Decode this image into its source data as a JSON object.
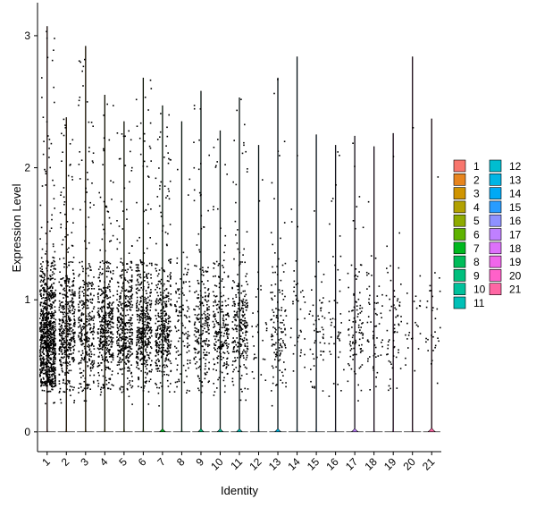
{
  "chart_data": {
    "type": "violin",
    "xlabel": "Identity",
    "ylabel": "Expression Level",
    "ylim": [
      -0.15,
      3.25
    ],
    "yticks": [
      0,
      1,
      2,
      3
    ],
    "grid": false,
    "legend_position": "right",
    "legend_columns": 2,
    "categories": [
      "1",
      "2",
      "3",
      "4",
      "5",
      "6",
      "7",
      "8",
      "9",
      "10",
      "11",
      "12",
      "13",
      "14",
      "15",
      "16",
      "17",
      "18",
      "19",
      "20",
      "21"
    ],
    "colors": [
      "#F8766D",
      "#E7851E",
      "#D09400",
      "#B2A100",
      "#8EAB00",
      "#5EB300",
      "#00B81F",
      "#00BC59",
      "#00BF7D",
      "#00C19C",
      "#00C0B7",
      "#00BDD0",
      "#00B5E4",
      "#00A9F4",
      "#289CFF",
      "#8F91FF",
      "#BF80FF",
      "#DD71FA",
      "#F066EA",
      "#FF61C9",
      "#FF67A4"
    ],
    "max_values": [
      3.07,
      2.38,
      2.92,
      2.55,
      2.35,
      2.68,
      2.47,
      2.35,
      2.58,
      2.28,
      2.53,
      2.17,
      2.68,
      2.84,
      2.25,
      2.17,
      2.24,
      2.16,
      2.26,
      2.84,
      2.37
    ],
    "fraction_nonzero": [
      0.95,
      0.72,
      0.7,
      0.85,
      0.82,
      0.75,
      0.65,
      0.35,
      0.52,
      0.48,
      0.55,
      0.12,
      0.32,
      0.15,
      0.18,
      0.16,
      0.3,
      0.22,
      0.22,
      0.12,
      0.18
    ],
    "zero_density_width": [
      0.02,
      0.02,
      0.02,
      0.02,
      0.02,
      0.02,
      0.3,
      0.02,
      0.28,
      0.3,
      0.3,
      0.02,
      0.32,
      0.02,
      0.02,
      0.02,
      0.34,
      0.02,
      0.02,
      0.02,
      0.38
    ],
    "point_counts": [
      900,
      450,
      330,
      420,
      400,
      430,
      380,
      120,
      230,
      230,
      250,
      30,
      130,
      40,
      55,
      45,
      100,
      60,
      60,
      25,
      30
    ]
  }
}
